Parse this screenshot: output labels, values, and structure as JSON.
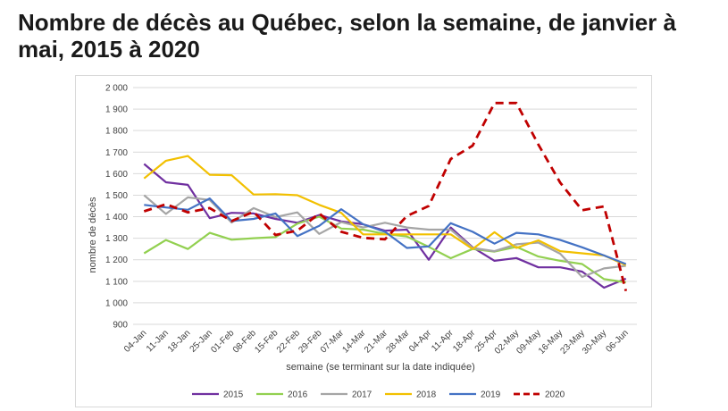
{
  "title": "Nombre de décès au Québec, selon la semaine, de janvier à mai, 2015 à 2020",
  "chart_data": {
    "type": "line",
    "title": "",
    "xlabel": "semaine (se terminant sur la date indiquée)",
    "ylabel": "nombre de décès",
    "ylim": [
      900,
      2000
    ],
    "yticks": [
      "2 000",
      "1 900",
      "1 800",
      "1 700",
      "1 600",
      "1 500",
      "1 400",
      "1 300",
      "1 200",
      "1 100",
      "1 000",
      "900"
    ],
    "ytick_values": [
      2000,
      1900,
      1800,
      1700,
      1600,
      1500,
      1400,
      1300,
      1200,
      1100,
      1000,
      900
    ],
    "grid": "horizontal",
    "legend_position": "bottom",
    "categories": [
      "04-Jan",
      "11-Jan",
      "18-Jan",
      "25-Jan",
      "01-Feb",
      "08-Feb",
      "15-Feb",
      "22-Feb",
      "29-Feb",
      "07-Mar",
      "14-Mar",
      "21-Mar",
      "28-Mar",
      "04-Apr",
      "11-Apr",
      "18-Apr",
      "25-Apr",
      "02-May",
      "09-May",
      "16-May",
      "23-May",
      "30-May",
      "06-Jun"
    ],
    "series": [
      {
        "name": "2015",
        "color": "#7030a0",
        "style": "solid",
        "values": [
          1645,
          1560,
          1548,
          1393,
          1418,
          1415,
          1390,
          1372,
          1408,
          1378,
          1365,
          1335,
          1340,
          1200,
          1350,
          1258,
          1195,
          1208,
          1165,
          1165,
          1145,
          1070,
          1112
        ]
      },
      {
        "name": "2016",
        "color": "#92d050",
        "style": "solid",
        "values": [
          1230,
          1292,
          1250,
          1325,
          1293,
          1300,
          1305,
          1368,
          1400,
          1345,
          1340,
          1320,
          1308,
          1260,
          1207,
          1250,
          1238,
          1260,
          1215,
          1195,
          1180,
          1110,
          1095
        ]
      },
      {
        "name": "2017",
        "color": "#a5a5a5",
        "style": "solid",
        "values": [
          1500,
          1413,
          1490,
          1478,
          1373,
          1440,
          1398,
          1420,
          1320,
          1375,
          1350,
          1372,
          1350,
          1340,
          1340,
          1255,
          1240,
          1272,
          1280,
          1228,
          1120,
          1160,
          1172
        ]
      },
      {
        "name": "2018",
        "color": "#f2c000",
        "style": "solid",
        "values": [
          1578,
          1660,
          1682,
          1595,
          1593,
          1503,
          1505,
          1500,
          1455,
          1418,
          1318,
          1318,
          1318,
          1318,
          1318,
          1250,
          1328,
          1255,
          1290,
          1240,
          1230,
          1220,
          1175
        ]
      },
      {
        "name": "2019",
        "color": "#4472c4",
        "style": "solid",
        "values": [
          1455,
          1443,
          1432,
          1485,
          1380,
          1390,
          1415,
          1310,
          1358,
          1435,
          1365,
          1330,
          1255,
          1262,
          1370,
          1330,
          1275,
          1325,
          1318,
          1292,
          1258,
          1220,
          1180
        ]
      },
      {
        "name": "2020",
        "color": "#c00000",
        "style": "dashed",
        "values": [
          1425,
          1458,
          1420,
          1440,
          1380,
          1423,
          1315,
          1335,
          1415,
          1330,
          1302,
          1295,
          1403,
          1450,
          1668,
          1730,
          1928,
          1928,
          1735,
          1558,
          1430,
          1448,
          1055
        ]
      }
    ]
  }
}
